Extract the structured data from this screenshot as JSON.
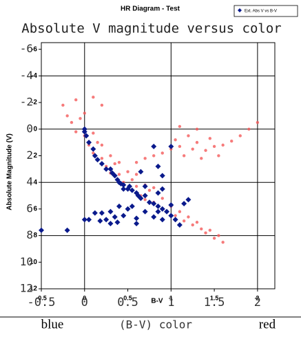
{
  "chart_data": {
    "type": "scatter",
    "title": "HR Diagram - Test",
    "subtitle": "Absolute V magnitude versus color",
    "x_label": "B-V",
    "y_label": "Absolute Magnitude (V)",
    "annotations": [
      "blue",
      "(B-V) color",
      "red"
    ],
    "xlim": [
      -0.5,
      2.2
    ],
    "ylim": [
      -6.5,
      12
    ],
    "y_inverted": true,
    "xticks": [
      -0.5,
      0,
      0.5,
      1,
      1.5,
      2
    ],
    "yticks": [
      -6,
      -4,
      -2,
      0,
      2,
      4,
      6,
      8,
      10,
      12
    ],
    "xgrid": [
      0,
      1,
      2
    ],
    "ygrid": [
      -4,
      0,
      4,
      8
    ],
    "legend_position": "top-right",
    "series": [
      {
        "color": "#f45a5a",
        "x": [
          -0.25,
          -0.2,
          -0.15,
          -0.1,
          -0.05,
          0,
          0,
          0.05,
          0.1,
          0.1,
          0.15,
          0.2,
          0.2,
          0.25,
          0.3,
          0.3,
          0.35,
          0.4,
          0.4,
          0.45,
          0.5,
          0.5,
          0.55,
          0.6,
          0.6,
          0.65,
          0.7,
          0.7,
          0.75,
          0.8,
          0.8,
          0.85,
          0.9,
          0.95,
          1.0,
          1.05,
          1.1,
          1.15,
          1.2,
          1.25,
          1.3,
          1.35,
          1.4,
          1.45,
          1.5,
          1.55,
          1.6,
          0.6,
          0.7,
          0.8,
          0.9,
          1.0,
          1.05,
          1.1,
          1.15,
          1.2,
          1.25,
          1.3,
          1.35,
          1.4,
          1.45,
          1.5,
          1.55,
          1.6,
          1.7,
          1.8,
          1.9,
          2.0,
          1.3,
          1.1,
          0.2,
          0.1,
          -0.1
        ],
        "values": [
          -1.8,
          -1,
          -0.5,
          0.2,
          -0.8,
          0.5,
          -1.2,
          1.2,
          0.3,
          1.8,
          1,
          2.2,
          1.2,
          2.8,
          2,
          3.3,
          2.6,
          3.4,
          2.5,
          4,
          3.2,
          4.5,
          3.8,
          4.3,
          3.4,
          5,
          4.2,
          5.3,
          4.6,
          5.5,
          4.4,
          5.8,
          5.2,
          6.2,
          5.8,
          6.5,
          6.2,
          6.9,
          6.6,
          7.2,
          7,
          7.5,
          7.8,
          7.6,
          8.2,
          8,
          8.5,
          2.5,
          2.2,
          2,
          1.8,
          1.5,
          0.8,
          1.3,
          2,
          0.5,
          1.5,
          1,
          2.2,
          1.6,
          0.7,
          1.3,
          2,
          1.2,
          0.9,
          0.5,
          0,
          -0.5,
          0,
          -0.2,
          -1.8,
          -2.4,
          -2.2
        ]
      },
      {
        "name": "Ext. Abs V vs B-V",
        "color": "#0a1a8c",
        "x": [
          0,
          0,
          0.02,
          0.05,
          0.1,
          0.12,
          0.15,
          0.2,
          0.25,
          0.3,
          0.32,
          0.35,
          0.38,
          0.4,
          0.42,
          0.45,
          0.45,
          0.5,
          0.52,
          0.55,
          0.6,
          0.62,
          0.65,
          0.7,
          0.75,
          0.8,
          0.85,
          0.9,
          0.95,
          1.0,
          1.05,
          1.1,
          0.8,
          1.0,
          0.85,
          0.9,
          0.7,
          0.65,
          0.3,
          0.2,
          0.25,
          0.3,
          0.38,
          0.45,
          0.5,
          0.55,
          0.6,
          0.4,
          -0.2,
          0,
          0.05,
          -0.5,
          0.12,
          0.18,
          0.8,
          0.85,
          0.9,
          1.0,
          1.2,
          1.15,
          0.9,
          0.85,
          0.7,
          0.6,
          0.35
        ],
        "values": [
          0,
          0.2,
          0.5,
          1,
          1.5,
          2,
          2.3,
          2.6,
          3,
          3,
          3.3,
          3.5,
          3.8,
          4,
          4.1,
          4.2,
          4.5,
          4.5,
          4.3,
          4.6,
          4.8,
          5,
          5.2,
          5,
          5.5,
          5.6,
          5.8,
          6,
          6.2,
          6.5,
          6.8,
          7.2,
          1.3,
          1.3,
          2.8,
          3.5,
          4.3,
          3.2,
          6.2,
          6.3,
          6.8,
          7.1,
          7,
          6.5,
          6,
          5.8,
          6.7,
          5.8,
          7.6,
          6.8,
          6.8,
          7.6,
          6.3,
          6.9,
          6.6,
          6.2,
          6.8,
          5.7,
          5.3,
          5.6,
          4.5,
          4.8,
          6.2,
          7.1,
          6.6
        ]
      }
    ]
  }
}
